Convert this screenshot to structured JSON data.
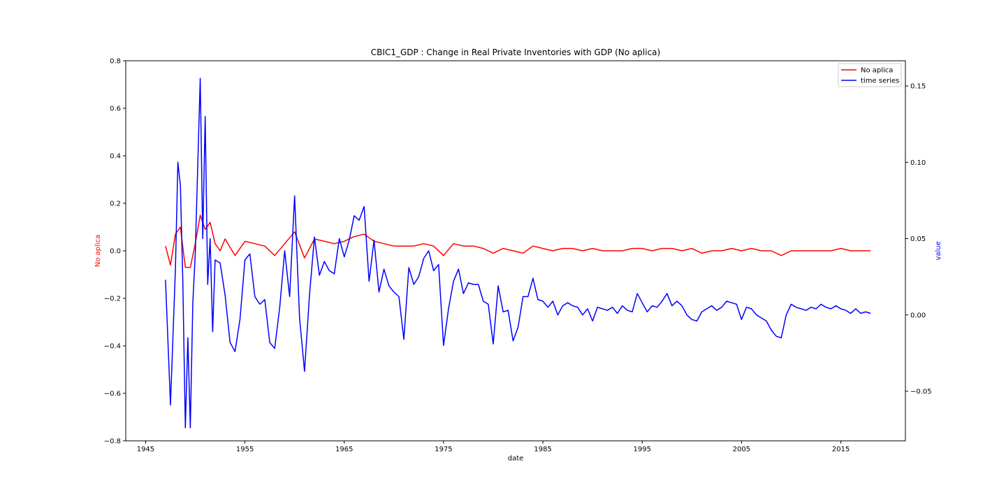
{
  "chart_data": {
    "type": "line",
    "title": "CBIC1_GDP :  Change in Real Private Inventories with GDP (No aplica)",
    "xlabel": "date",
    "ylabel_left": "No aplica",
    "ylabel_right": "value",
    "xlim": [
      1943.0,
      2021.5
    ],
    "ylim_left": [
      -0.8,
      0.8
    ],
    "ylim_right": [
      -0.0825,
      0.1665
    ],
    "x_ticks": [
      1945,
      1955,
      1965,
      1975,
      1985,
      1995,
      2005,
      2015
    ],
    "y_ticks_left": [
      -0.8,
      -0.6,
      -0.4,
      -0.2,
      0.0,
      0.2,
      0.4,
      0.6,
      0.8
    ],
    "y_ticks_right": [
      -0.05,
      0.0,
      0.05,
      0.1,
      0.15
    ],
    "y_tick_labels_left": [
      "−0.8",
      "−0.6",
      "−0.4",
      "−0.2",
      "0.0",
      "0.2",
      "0.4",
      "0.6",
      "0.8"
    ],
    "y_tick_labels_right": [
      "−0.05",
      "0.00",
      "0.05",
      "0.10",
      "0.15"
    ],
    "legend_position": "top-right",
    "grid": false,
    "series": [
      {
        "name": "No aplica",
        "axis": "left",
        "color": "#ff0000",
        "x": [
          1947.0,
          1947.5,
          1948.0,
          1948.5,
          1949.0,
          1949.5,
          1950.0,
          1950.5,
          1951.0,
          1951.5,
          1952.0,
          1952.5,
          1953.0,
          1954.0,
          1955.0,
          1956.0,
          1957.0,
          1958.0,
          1959.0,
          1960.0,
          1961.0,
          1962.0,
          1963.0,
          1964.0,
          1965.0,
          1966.0,
          1967.0,
          1968.0,
          1969.0,
          1970.0,
          1971.0,
          1972.0,
          1973.0,
          1974.0,
          1975.0,
          1976.0,
          1977.0,
          1978.0,
          1979.0,
          1980.0,
          1981.0,
          1982.0,
          1983.0,
          1984.0,
          1985.0,
          1986.0,
          1987.0,
          1988.0,
          1989.0,
          1990.0,
          1991.0,
          1992.0,
          1993.0,
          1994.0,
          1995.0,
          1996.0,
          1997.0,
          1998.0,
          1999.0,
          2000.0,
          2001.0,
          2002.0,
          2003.0,
          2004.0,
          2005.0,
          2006.0,
          2007.0,
          2008.0,
          2009.0,
          2010.0,
          2011.0,
          2012.0,
          2013.0,
          2014.0,
          2015.0,
          2016.0,
          2017.0,
          2018.0
        ],
        "values": [
          0.02,
          -0.06,
          0.07,
          0.1,
          -0.07,
          -0.07,
          0.03,
          0.15,
          0.09,
          0.12,
          0.03,
          0.0,
          0.05,
          -0.02,
          0.04,
          0.03,
          0.02,
          -0.02,
          0.03,
          0.08,
          -0.03,
          0.05,
          0.04,
          0.03,
          0.04,
          0.06,
          0.07,
          0.04,
          0.03,
          0.02,
          0.02,
          0.02,
          0.03,
          0.02,
          -0.02,
          0.03,
          0.02,
          0.02,
          0.01,
          -0.01,
          0.01,
          0.0,
          -0.01,
          0.02,
          0.01,
          0.0,
          0.01,
          0.01,
          0.0,
          0.01,
          0.0,
          0.0,
          0.0,
          0.01,
          0.01,
          0.0,
          0.01,
          0.01,
          0.0,
          0.01,
          -0.01,
          0.0,
          0.0,
          0.01,
          0.0,
          0.01,
          0.0,
          0.0,
          -0.02,
          0.0,
          0.0,
          0.0,
          0.0,
          0.0,
          0.01,
          0.0,
          0.0,
          0.0
        ]
      },
      {
        "name": "time series",
        "axis": "right",
        "color": "#0000ff",
        "x": [
          1947.0,
          1947.5,
          1948.0,
          1948.25,
          1948.5,
          1948.75,
          1949.0,
          1949.25,
          1949.5,
          1949.75,
          1950.0,
          1950.5,
          1950.75,
          1951.0,
          1951.25,
          1951.5,
          1951.75,
          1952.0,
          1952.5,
          1953.0,
          1953.5,
          1954.0,
          1954.5,
          1955.0,
          1955.5,
          1956.0,
          1956.5,
          1957.0,
          1957.5,
          1958.0,
          1958.5,
          1959.0,
          1959.5,
          1960.0,
          1960.5,
          1961.0,
          1961.5,
          1962.0,
          1962.5,
          1963.0,
          1963.5,
          1964.0,
          1964.5,
          1965.0,
          1965.5,
          1966.0,
          1966.5,
          1967.0,
          1967.5,
          1968.0,
          1968.5,
          1969.0,
          1969.5,
          1970.0,
          1970.5,
          1971.0,
          1971.5,
          1972.0,
          1972.5,
          1973.0,
          1973.5,
          1974.0,
          1974.5,
          1975.0,
          1975.5,
          1976.0,
          1976.5,
          1977.0,
          1977.5,
          1978.0,
          1978.5,
          1979.0,
          1979.5,
          1980.0,
          1980.5,
          1981.0,
          1981.5,
          1982.0,
          1982.5,
          1983.0,
          1983.5,
          1984.0,
          1984.5,
          1985.0,
          1985.5,
          1986.0,
          1986.5,
          1987.0,
          1987.5,
          1988.0,
          1988.5,
          1989.0,
          1989.5,
          1990.0,
          1990.5,
          1991.0,
          1991.5,
          1992.0,
          1992.5,
          1993.0,
          1993.5,
          1994.0,
          1994.5,
          1995.0,
          1995.5,
          1996.0,
          1996.5,
          1997.0,
          1997.5,
          1998.0,
          1998.5,
          1999.0,
          1999.5,
          2000.0,
          2000.5,
          2001.0,
          2001.5,
          2002.0,
          2002.5,
          2003.0,
          2003.5,
          2004.0,
          2004.5,
          2005.0,
          2005.5,
          2006.0,
          2006.5,
          2007.0,
          2007.5,
          2008.0,
          2008.5,
          2009.0,
          2009.5,
          2010.0,
          2010.5,
          2011.0,
          2011.5,
          2012.0,
          2012.5,
          2013.0,
          2013.5,
          2014.0,
          2014.5,
          2015.0,
          2015.5,
          2016.0,
          2016.5,
          2017.0,
          2017.5,
          2018.0
        ],
        "values": [
          0.023,
          -0.059,
          0.03,
          0.1,
          0.085,
          0.022,
          -0.074,
          -0.015,
          -0.074,
          0.008,
          0.04,
          0.155,
          0.05,
          0.13,
          0.02,
          0.05,
          -0.011,
          0.036,
          0.034,
          0.013,
          -0.018,
          -0.024,
          -0.003,
          0.036,
          0.04,
          0.012,
          0.007,
          0.01,
          -0.018,
          -0.022,
          0.005,
          0.042,
          0.012,
          0.078,
          -0.002,
          -0.037,
          0.013,
          0.051,
          0.026,
          0.035,
          0.029,
          0.027,
          0.05,
          0.038,
          0.049,
          0.065,
          0.062,
          0.071,
          0.022,
          0.049,
          0.015,
          0.03,
          0.019,
          0.015,
          0.012,
          -0.016,
          0.031,
          0.02,
          0.025,
          0.037,
          0.042,
          0.029,
          0.033,
          -0.02,
          0.004,
          0.022,
          0.03,
          0.014,
          0.021,
          0.02,
          0.02,
          0.009,
          0.007,
          -0.019,
          0.019,
          0.002,
          0.003,
          -0.017,
          -0.008,
          0.012,
          0.012,
          0.024,
          0.01,
          0.009,
          0.005,
          0.009,
          0.0,
          0.006,
          0.008,
          0.006,
          0.005,
          0.0,
          0.004,
          -0.004,
          0.005,
          0.004,
          0.003,
          0.005,
          0.001,
          0.006,
          0.003,
          0.002,
          0.014,
          0.008,
          0.002,
          0.006,
          0.005,
          0.009,
          0.014,
          0.006,
          0.009,
          0.006,
          0.0,
          -0.003,
          -0.004,
          0.002,
          0.004,
          0.006,
          0.003,
          0.005,
          0.009,
          0.008,
          0.007,
          -0.003,
          0.005,
          0.004,
          0.0,
          -0.002,
          -0.004,
          -0.01,
          -0.014,
          -0.015,
          0.0,
          0.007,
          0.005,
          0.004,
          0.003,
          0.005,
          0.004,
          0.007,
          0.005,
          0.004,
          0.006,
          0.004,
          0.003,
          0.001,
          0.004,
          0.001,
          0.002,
          0.001
        ]
      }
    ]
  }
}
